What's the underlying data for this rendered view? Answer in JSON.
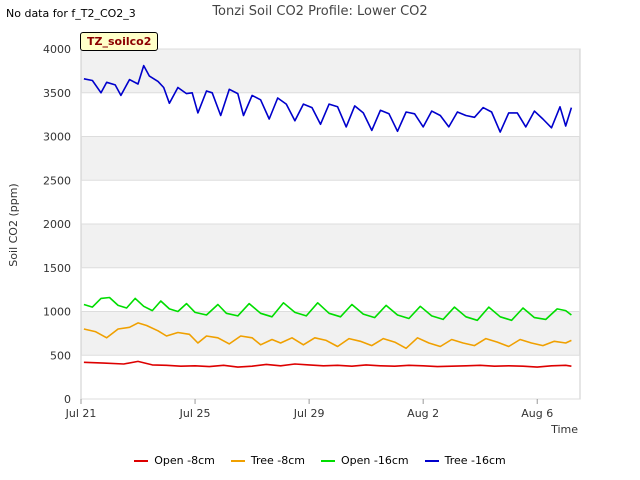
{
  "page": {
    "note": "No data for f_T2_CO2_3",
    "tag": "TZ_soilco2"
  },
  "chart_data": {
    "type": "line",
    "title": "Tonzi Soil CO2 Profile: Lower CO2",
    "xlabel": "Time",
    "ylabel": "Soil CO2 (ppm)",
    "ylim": [
      0,
      4000
    ],
    "xlim_days": [
      0,
      17.5
    ],
    "yticks": [
      0,
      500,
      1000,
      1500,
      2000,
      2500,
      3000,
      3500,
      4000
    ],
    "xticks": [
      {
        "day": 0,
        "label": "Jul 21"
      },
      {
        "day": 4,
        "label": "Jul 25"
      },
      {
        "day": 8,
        "label": "Jul 29"
      },
      {
        "day": 12,
        "label": "Aug 2"
      },
      {
        "day": 16,
        "label": "Aug 6"
      }
    ],
    "grid": true,
    "series": [
      {
        "name": "Open -8cm",
        "color": "#dd0000",
        "x": [
          0.1,
          0.8,
          1.5,
          2.0,
          2.5,
          3.0,
          3.5,
          4.0,
          4.5,
          5.0,
          5.5,
          6.0,
          6.5,
          7.0,
          7.5,
          8.0,
          8.5,
          9.0,
          9.5,
          10.0,
          10.5,
          11.0,
          11.5,
          12.0,
          12.5,
          13.0,
          13.5,
          14.0,
          14.5,
          15.0,
          15.5,
          16.0,
          16.5,
          17.0,
          17.2
        ],
        "values": [
          420,
          410,
          400,
          430,
          390,
          385,
          375,
          380,
          370,
          385,
          365,
          375,
          395,
          380,
          400,
          390,
          380,
          385,
          375,
          390,
          380,
          375,
          385,
          380,
          370,
          375,
          380,
          385,
          375,
          380,
          375,
          365,
          380,
          385,
          375
        ]
      },
      {
        "name": "Tree -8cm",
        "color": "#f0a000",
        "x": [
          0.1,
          0.5,
          0.9,
          1.3,
          1.7,
          2.0,
          2.3,
          2.7,
          3.0,
          3.4,
          3.8,
          4.1,
          4.4,
          4.8,
          5.2,
          5.6,
          6.0,
          6.3,
          6.7,
          7.0,
          7.4,
          7.8,
          8.2,
          8.6,
          9.0,
          9.4,
          9.8,
          10.2,
          10.6,
          11.0,
          11.4,
          11.8,
          12.2,
          12.6,
          13.0,
          13.4,
          13.8,
          14.2,
          14.6,
          15.0,
          15.4,
          15.8,
          16.2,
          16.6,
          17.0,
          17.2
        ],
        "values": [
          800,
          770,
          700,
          800,
          820,
          870,
          840,
          780,
          720,
          760,
          740,
          640,
          720,
          700,
          630,
          720,
          700,
          620,
          680,
          640,
          700,
          620,
          700,
          670,
          600,
          690,
          660,
          610,
          690,
          650,
          580,
          700,
          640,
          600,
          680,
          640,
          610,
          690,
          650,
          600,
          680,
          640,
          610,
          660,
          640,
          670
        ]
      },
      {
        "name": "Open -16cm",
        "color": "#00dd00",
        "x": [
          0.1,
          0.4,
          0.7,
          1.0,
          1.3,
          1.6,
          1.9,
          2.2,
          2.5,
          2.8,
          3.1,
          3.4,
          3.7,
          4.0,
          4.4,
          4.8,
          5.1,
          5.5,
          5.9,
          6.3,
          6.7,
          7.1,
          7.5,
          7.9,
          8.3,
          8.7,
          9.1,
          9.5,
          9.9,
          10.3,
          10.7,
          11.1,
          11.5,
          11.9,
          12.3,
          12.7,
          13.1,
          13.5,
          13.9,
          14.3,
          14.7,
          15.1,
          15.5,
          15.9,
          16.3,
          16.7,
          17.0,
          17.2
        ],
        "values": [
          1080,
          1050,
          1150,
          1160,
          1070,
          1040,
          1150,
          1060,
          1010,
          1120,
          1030,
          1000,
          1090,
          990,
          960,
          1080,
          980,
          950,
          1090,
          980,
          940,
          1100,
          990,
          950,
          1100,
          980,
          940,
          1080,
          970,
          930,
          1070,
          960,
          920,
          1060,
          950,
          910,
          1050,
          940,
          900,
          1050,
          940,
          900,
          1040,
          930,
          910,
          1030,
          1010,
          960
        ]
      },
      {
        "name": "Tree -16cm",
        "color": "#0000cc",
        "x": [
          0.1,
          0.4,
          0.7,
          0.9,
          1.2,
          1.4,
          1.7,
          2.0,
          2.2,
          2.4,
          2.7,
          2.9,
          3.1,
          3.4,
          3.7,
          3.9,
          4.1,
          4.4,
          4.6,
          4.9,
          5.2,
          5.5,
          5.7,
          6.0,
          6.3,
          6.6,
          6.9,
          7.2,
          7.5,
          7.8,
          8.1,
          8.4,
          8.7,
          9.0,
          9.3,
          9.6,
          9.9,
          10.2,
          10.5,
          10.8,
          11.1,
          11.4,
          11.7,
          12.0,
          12.3,
          12.6,
          12.9,
          13.2,
          13.5,
          13.8,
          14.1,
          14.4,
          14.7,
          15.0,
          15.3,
          15.6,
          15.9,
          16.2,
          16.5,
          16.8,
          17.0,
          17.2
        ],
        "values": [
          3660,
          3640,
          3500,
          3620,
          3590,
          3470,
          3650,
          3600,
          3810,
          3690,
          3630,
          3560,
          3380,
          3560,
          3490,
          3500,
          3270,
          3520,
          3500,
          3240,
          3540,
          3490,
          3240,
          3470,
          3420,
          3200,
          3440,
          3370,
          3180,
          3370,
          3330,
          3140,
          3370,
          3340,
          3110,
          3350,
          3270,
          3070,
          3300,
          3260,
          3060,
          3280,
          3260,
          3110,
          3290,
          3240,
          3110,
          3280,
          3240,
          3220,
          3330,
          3280,
          3050,
          3270,
          3270,
          3110,
          3290,
          3200,
          3100,
          3340,
          3120,
          3330
        ]
      }
    ]
  }
}
